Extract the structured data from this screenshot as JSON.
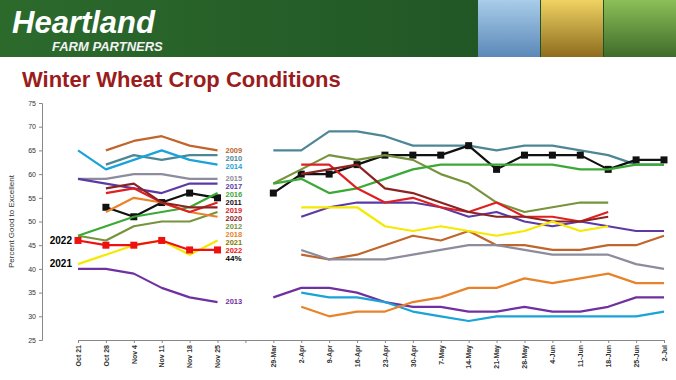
{
  "header": {
    "brand": "Heartland",
    "tagline": "FARM PARTNERS"
  },
  "chart_data": {
    "type": "line",
    "title": "Winter Wheat Crop Conditions",
    "y_label": "Percent Good to Excellent",
    "grid": false,
    "ylim": [
      25,
      75
    ],
    "yticks": [
      25,
      30,
      35,
      40,
      45,
      50,
      55,
      60,
      65,
      70,
      75
    ],
    "categories": [
      "Oct 21",
      "Oct 28",
      "Nov 4",
      "Nov 11",
      "Nov 18",
      "Nov 25",
      null,
      "29-Mar",
      "2-Apr",
      "9-Apr",
      "16-Apr",
      "23-Apr",
      "30-Apr",
      "7-May",
      "14-May",
      "21-May",
      "28-May",
      "4-Jun",
      "11-Jun",
      "18-Jun",
      "25-Jun",
      "2-Jul"
    ],
    "series": [
      {
        "name": "2009",
        "color": "#c0652b",
        "values": [
          null,
          65,
          67,
          68,
          66,
          65,
          null,
          null,
          43,
          42,
          43,
          45,
          47,
          46,
          48,
          45,
          45,
          44,
          44,
          45,
          45,
          47
        ]
      },
      {
        "name": "2010",
        "color": "#4d8796",
        "values": [
          null,
          62,
          64,
          63,
          64,
          64,
          null,
          65,
          65,
          69,
          69,
          68,
          66,
          66,
          66,
          65,
          66,
          66,
          65,
          64,
          62,
          62
        ]
      },
      {
        "name": "2011",
        "color": "#111111",
        "marker": "square",
        "values": [
          null,
          53,
          51,
          54,
          56,
          55,
          null,
          56,
          60,
          60,
          62,
          64,
          64,
          64,
          66,
          61,
          64,
          64,
          64,
          61,
          63,
          63
        ]
      },
      {
        "name": "2012",
        "color": "#77933c",
        "values": [
          47,
          46,
          49,
          50,
          50,
          52,
          null,
          58,
          61,
          64,
          63,
          64,
          63,
          60,
          58,
          54,
          52,
          53,
          54,
          54,
          null,
          null
        ]
      },
      {
        "name": "2013",
        "color": "#7030a0",
        "values": [
          40,
          40,
          39,
          36,
          34,
          33,
          null,
          34,
          36,
          36,
          35,
          33,
          32,
          32,
          31,
          31,
          32,
          31,
          31,
          32,
          34,
          34
        ]
      },
      {
        "name": "2014",
        "color": "#1aa3d9",
        "values": [
          65,
          61,
          63,
          65,
          63,
          62,
          null,
          null,
          35,
          34,
          34,
          33,
          31,
          30,
          29,
          30,
          30,
          30,
          30,
          30,
          30,
          31
        ]
      },
      {
        "name": "2015",
        "color": "#8c8c9c",
        "values": [
          59,
          59,
          60,
          60,
          59,
          59,
          null,
          null,
          44,
          42,
          42,
          42,
          43,
          44,
          45,
          45,
          44,
          43,
          43,
          43,
          41,
          40
        ]
      },
      {
        "name": "2016",
        "color": "#3aa935",
        "values": [
          47,
          49,
          51,
          52,
          53,
          56,
          null,
          58,
          59,
          56,
          57,
          59,
          61,
          62,
          62,
          62,
          62,
          62,
          61,
          61,
          62,
          62
        ]
      },
      {
        "name": "2017",
        "color": "#5b3aa5",
        "values": [
          59,
          58,
          57,
          56,
          58,
          58,
          null,
          null,
          51,
          53,
          54,
          54,
          54,
          53,
          51,
          52,
          50,
          49,
          50,
          49,
          48,
          48
        ]
      },
      {
        "name": "2018",
        "color": "#e8832a",
        "values": [
          null,
          52,
          55,
          54,
          52,
          51,
          null,
          null,
          32,
          30,
          31,
          31,
          33,
          34,
          36,
          36,
          38,
          37,
          38,
          39,
          37,
          37
        ]
      },
      {
        "name": "2019",
        "color": "#e02020",
        "values": [
          null,
          56,
          57,
          54,
          52,
          54,
          null,
          null,
          62,
          62,
          57,
          54,
          55,
          53,
          52,
          54,
          51,
          51,
          50,
          52,
          null,
          null
        ]
      },
      {
        "name": "2020",
        "color": "#8b2323",
        "values": [
          null,
          57,
          58,
          54,
          53,
          53,
          null,
          null,
          60,
          61,
          62,
          57,
          56,
          54,
          52,
          51,
          51,
          50,
          50,
          51,
          null,
          null
        ]
      },
      {
        "name": "2021",
        "color": "#f5e900",
        "values": [
          41,
          43,
          45,
          46,
          43,
          46,
          null,
          null,
          53,
          53,
          53,
          49,
          48,
          49,
          48,
          47,
          48,
          50,
          48,
          49,
          null,
          null
        ]
      },
      {
        "name": "2022",
        "color": "#ee1111",
        "marker": "square",
        "values": [
          46,
          45,
          45,
          46,
          44,
          44,
          null,
          null,
          null,
          null,
          null,
          null,
          null,
          null,
          null,
          null,
          null,
          null,
          null,
          null,
          null,
          null
        ]
      }
    ],
    "annotations": [
      {
        "text": "2022",
        "x": "Oct 21",
        "y": 46
      },
      {
        "text": "2021",
        "x": "Oct 21",
        "y": 41
      },
      {
        "text": "44%",
        "x": "Nov 25",
        "y": 44
      }
    ]
  }
}
